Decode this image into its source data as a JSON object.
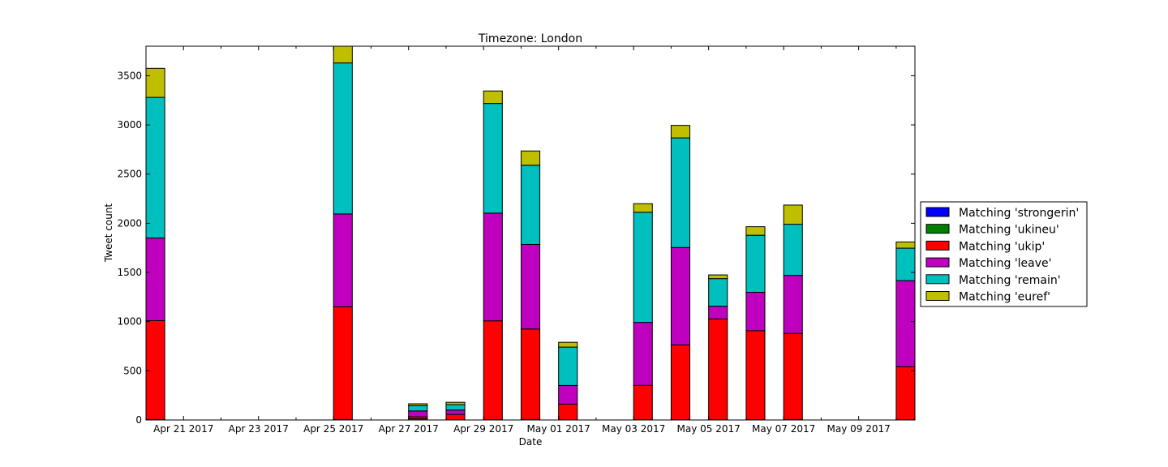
{
  "chart_data": {
    "type": "bar",
    "stacked": true,
    "title": "Timezone: London",
    "xlabel": "Date",
    "ylabel": "Tweet count",
    "ylim": [
      0,
      3800
    ],
    "y_ticks": [
      0,
      500,
      1000,
      1500,
      2000,
      2500,
      3000,
      3500
    ],
    "xlim": [
      "2017-04-20",
      "2017-05-10T12:00"
    ],
    "x_ticks": [
      "Apr 21 2017",
      "Apr 23 2017",
      "Apr 25 2017",
      "Apr 27 2017",
      "Apr 29 2017",
      "May 01 2017",
      "May 03 2017",
      "May 05 2017",
      "May 07 2017",
      "May 09 2017"
    ],
    "x": [
      "2017-04-20",
      "2017-04-25",
      "2017-04-27",
      "2017-04-28",
      "2017-04-29",
      "2017-04-30",
      "2017-05-01",
      "2017-05-03",
      "2017-05-04",
      "2017-05-05",
      "2017-05-06",
      "2017-05-07",
      "2017-05-10"
    ],
    "series": [
      {
        "name": "Matching 'strongerin'",
        "color": "#0000ff",
        "values": [
          0,
          0,
          0,
          0,
          0,
          0,
          0,
          0,
          0,
          0,
          0,
          0,
          0
        ]
      },
      {
        "name": "Matching 'ukineu'",
        "color": "#008000",
        "values": [
          5,
          5,
          12,
          1,
          3,
          5,
          1,
          2,
          3,
          2,
          3,
          5,
          2
        ]
      },
      {
        "name": "Matching 'ukip'",
        "color": "#ff0000",
        "values": [
          1005,
          1145,
          20,
          55,
          1005,
          920,
          160,
          350,
          760,
          1025,
          905,
          875,
          540
        ]
      },
      {
        "name": "Matching 'leave'",
        "color": "#bf00bf",
        "values": [
          840,
          945,
          60,
          45,
          1095,
          860,
          190,
          640,
          990,
          130,
          390,
          590,
          875
        ]
      },
      {
        "name": "Matching 'remain'",
        "color": "#00bfbf",
        "values": [
          1430,
          1535,
          55,
          55,
          1115,
          805,
          390,
          1120,
          1115,
          280,
          580,
          520,
          330
        ]
      },
      {
        "name": "Matching 'euref'",
        "color": "#bfbf00",
        "values": [
          295,
          170,
          18,
          24,
          127,
          145,
          49,
          87,
          127,
          38,
          87,
          195,
          63
        ]
      }
    ],
    "legend": "right",
    "grid": false
  }
}
